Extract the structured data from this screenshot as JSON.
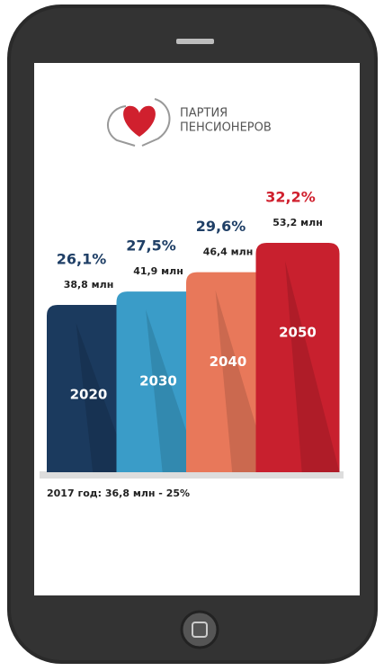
{
  "chart_data": {
    "type": "bar",
    "logo_lines": [
      "ПАРТИЯ",
      "ПЕНСИОНЕРОВ"
    ],
    "categories": [
      "2020",
      "2030",
      "2040",
      "2050"
    ],
    "values": [
      38.8,
      41.9,
      46.4,
      53.2
    ],
    "value_labels": [
      "38,8 млн",
      "41,9 млн",
      "46,4 млн",
      "53,2 млн"
    ],
    "shares": [
      26.1,
      27.5,
      29.6,
      32.2
    ],
    "share_labels": [
      "26,1%",
      "27,5%",
      "29,6%",
      "32,2%"
    ],
    "share_colors": [
      "#1f3f66",
      "#1f3f66",
      "#1f3f66",
      "#d0202e"
    ],
    "colors": [
      "#1b3a5e",
      "#3a9cc8",
      "#e8785a",
      "#c8202e"
    ],
    "footnote": "2017 год: 36,8 млн - 25%"
  }
}
